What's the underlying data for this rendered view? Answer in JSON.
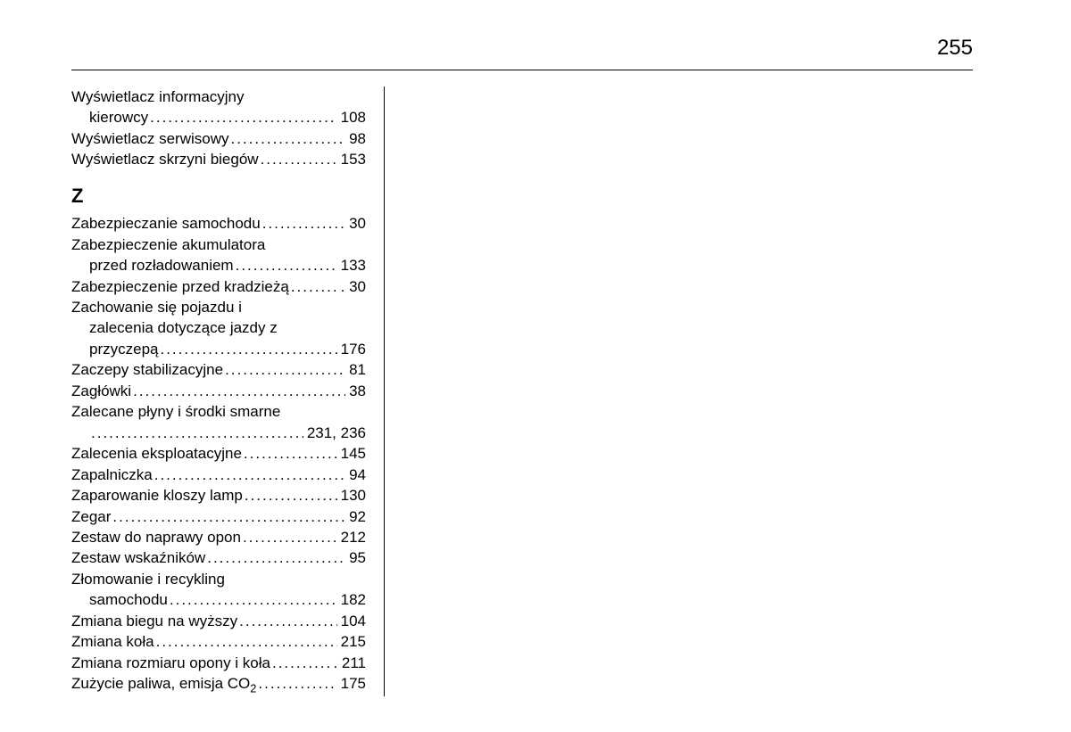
{
  "page_number": "255",
  "entries_w": [
    {
      "lines": [
        "Wyświetlacz informacyjny"
      ],
      "last": "kierowcy",
      "page": "108",
      "indent_last": true
    },
    {
      "lines": [],
      "last": "Wyświetlacz serwisowy",
      "page": "98"
    },
    {
      "lines": [],
      "last": "Wyświetlacz skrzyni biegów",
      "page": "153"
    }
  ],
  "section_z": "Z",
  "entries_z": [
    {
      "lines": [],
      "last": "Zabezpieczanie samochodu",
      "page": "30"
    },
    {
      "lines": [
        "Zabezpieczenie akumulatora"
      ],
      "last": "przed rozładowaniem",
      "page": "133",
      "indent_last": true
    },
    {
      "lines": [],
      "last": "Zabezpieczenie przed kradzieżą",
      "page": "30",
      "tight": true
    },
    {
      "lines": [
        "Zachowanie się pojazdu i",
        "zalecenia dotyczące jazdy z"
      ],
      "last": "przyczepą",
      "page": "176",
      "indent_cont": true,
      "indent_last": true
    },
    {
      "lines": [],
      "last": "Zaczepy stabilizacyjne",
      "page": "81"
    },
    {
      "lines": [],
      "last": "Zagłówki",
      "page": "38"
    },
    {
      "lines": [
        "Zalecane płyny i środki smarne"
      ],
      "last": "",
      "page": "231, 236",
      "indent_last": true,
      "leader_full": true
    },
    {
      "lines": [],
      "last": "Zalecenia eksploatacyjne",
      "page": "145"
    },
    {
      "lines": [],
      "last": "Zapalniczka",
      "page": "94"
    },
    {
      "lines": [],
      "last": "Zaparowanie kloszy lamp",
      "page": "130"
    },
    {
      "lines": [],
      "last": "Zegar",
      "page": "92"
    },
    {
      "lines": [],
      "last": "Zestaw do naprawy opon",
      "page": "212"
    },
    {
      "lines": [],
      "last": "Zestaw wskaźników",
      "page": "95"
    },
    {
      "lines": [
        "Złomowanie i recykling"
      ],
      "last": "samochodu",
      "page": "182",
      "indent_last": true
    },
    {
      "lines": [],
      "last": "Zmiana biegu na wyższy",
      "page": "104"
    },
    {
      "lines": [],
      "last": "Zmiana koła",
      "page": "215"
    },
    {
      "lines": [],
      "last": "Zmiana rozmiaru opony i koła",
      "page": "211",
      "tight": true
    },
    {
      "lines": [],
      "last": "Zużycie paliwa, emisja CO₂",
      "page": "175"
    }
  ]
}
